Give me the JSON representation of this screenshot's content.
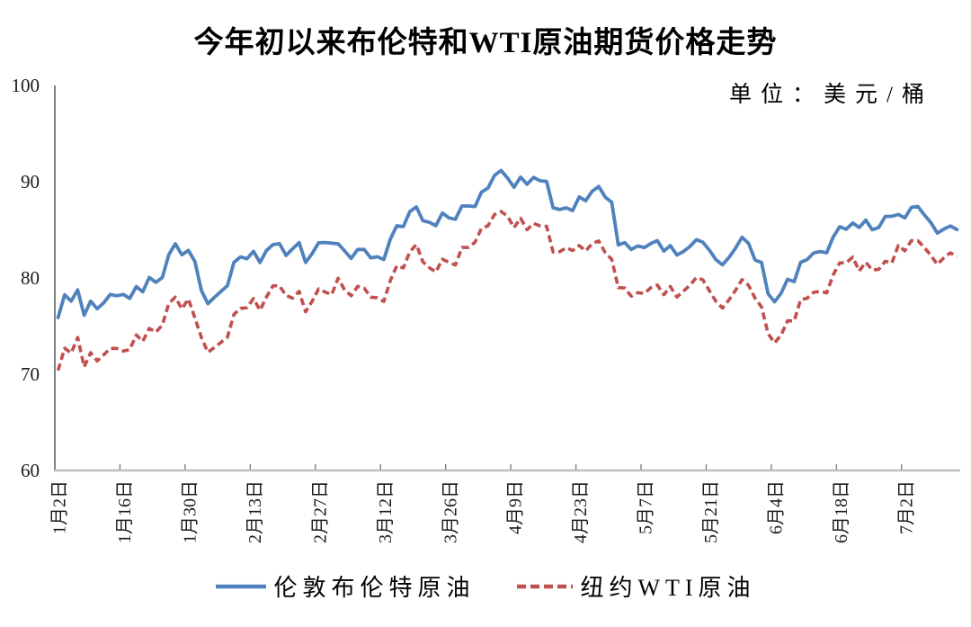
{
  "chart_data": {
    "type": "line",
    "title": "今年初以来布伦特和WTI原油期货价格走势",
    "unit_label": "单位：美元/桶",
    "xlabel": "",
    "ylabel": "",
    "ylim": [
      60,
      100
    ],
    "y_ticks": [
      100,
      90,
      80,
      70,
      60
    ],
    "x_tick_labels": [
      "1月2日",
      "1月16日",
      "1月30日",
      "2月13日",
      "2月27日",
      "3月12日",
      "3月26日",
      "4月9日",
      "4月23日",
      "5月7日",
      "5月21日",
      "6月4日",
      "6月18日",
      "7月2日"
    ],
    "x_tick_step": 10,
    "grid": false,
    "legend_position": "bottom",
    "series": [
      {
        "name": "伦敦布伦特原油",
        "color": "#4f81bd",
        "line_style": "solid",
        "values": [
          75.89,
          78.25,
          77.59,
          78.76,
          76.12,
          77.59,
          76.8,
          77.41,
          78.29,
          78.15,
          78.29,
          77.88,
          79.1,
          78.56,
          80.06,
          79.55,
          80.04,
          82.43,
          83.55,
          82.4,
          82.87,
          81.71,
          78.7,
          77.33,
          77.99,
          78.59,
          79.21,
          81.63,
          82.19,
          82.0,
          82.77,
          81.6,
          82.86,
          83.47,
          83.56,
          82.34,
          83.03,
          83.67,
          81.62,
          82.53,
          83.65,
          83.68,
          83.62,
          83.55,
          82.8,
          82.04,
          82.96,
          82.96,
          82.08,
          82.21,
          81.92,
          84.03,
          85.42,
          85.34,
          86.89,
          87.38,
          85.95,
          85.78,
          85.43,
          86.75,
          86.25,
          86.09,
          87.48,
          87.48,
          87.42,
          88.92,
          89.35,
          90.65,
          91.17,
          90.38,
          89.42,
          90.48,
          89.74,
          90.45,
          90.1,
          90.02,
          87.29,
          87.11,
          87.29,
          87.0,
          88.42,
          88.02,
          89.01,
          89.5,
          88.4,
          87.86,
          83.44,
          83.67,
          82.96,
          83.33,
          83.16,
          83.58,
          83.88,
          82.79,
          83.36,
          82.38,
          82.75,
          83.27,
          83.98,
          83.71,
          82.88,
          81.9,
          81.36,
          82.12,
          83.1,
          84.22,
          83.6,
          81.86,
          81.62,
          78.36,
          77.52,
          78.41,
          79.87,
          79.62,
          81.63,
          81.92,
          82.6,
          82.75,
          82.62,
          84.25,
          85.33,
          85.07,
          85.71,
          85.24,
          86.01,
          85.01,
          85.25,
          86.39,
          86.41,
          86.6,
          86.24,
          87.34,
          87.43,
          86.54,
          85.75,
          84.66,
          85.08,
          85.4,
          85.03
        ]
      },
      {
        "name": "纽约WTI原油",
        "color": "#c0504d",
        "line_style": "dashed",
        "values": [
          70.38,
          72.7,
          72.19,
          73.81,
          70.77,
          72.24,
          71.37,
          72.02,
          72.68,
          72.68,
          72.4,
          72.56,
          74.08,
          73.41,
          74.76,
          74.37,
          75.09,
          77.36,
          78.01,
          76.78,
          77.82,
          75.85,
          73.82,
          72.28,
          72.78,
          73.31,
          73.86,
          76.22,
          76.84,
          76.92,
          77.87,
          76.64,
          78.03,
          79.19,
          79.19,
          78.18,
          77.91,
          78.61,
          76.49,
          77.58,
          78.87,
          78.54,
          78.26,
          79.97,
          78.74,
          78.15,
          79.13,
          78.93,
          78.01,
          77.93,
          77.56,
          79.72,
          81.26,
          81.04,
          82.72,
          83.47,
          81.68,
          81.07,
          80.63,
          81.95,
          81.62,
          81.35,
          83.17,
          83.17,
          83.71,
          85.15,
          85.43,
          86.59,
          86.91,
          86.43,
          85.23,
          86.21,
          85.02,
          85.66,
          85.41,
          85.36,
          82.69,
          82.73,
          83.14,
          82.85,
          83.36,
          82.81,
          83.57,
          83.85,
          82.63,
          81.93,
          79.0,
          78.95,
          78.11,
          78.48,
          78.38,
          78.99,
          79.26,
          78.26,
          79.12,
          78.02,
          78.63,
          79.23,
          80.06,
          79.8,
          78.66,
          77.57,
          76.87,
          77.72,
          78.72,
          79.83,
          79.23,
          77.91,
          76.99,
          74.22,
          73.25,
          74.07,
          75.55,
          75.53,
          77.74,
          77.9,
          78.5,
          78.62,
          78.45,
          80.33,
          81.57,
          81.57,
          82.17,
          80.73,
          81.63,
          80.83,
          80.9,
          81.74,
          81.54,
          83.38,
          82.81,
          83.88,
          83.88,
          83.16,
          82.33,
          81.41,
          82.1,
          82.62,
          82.21
        ]
      }
    ]
  }
}
